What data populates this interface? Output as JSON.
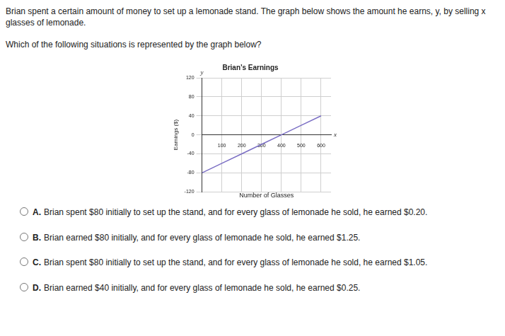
{
  "question": {
    "intro": "Brian spent a certain amount of money to set up a lemonade stand. The graph below shows the amount he earns, y, by selling x glasses of lemonade.",
    "prompt": "Which of the following situations is represented by the graph below?"
  },
  "chart_data": {
    "type": "line",
    "title": "Brian’s Earnings",
    "x_label": "Number of Glasses",
    "y_label": "Earnings ($)",
    "annotations": [
      {
        "text": "x",
        "axis": "x"
      },
      {
        "text": "y",
        "axis": "y"
      }
    ],
    "x": [
      0,
      100,
      200,
      300,
      400,
      500,
      600
    ],
    "series": [
      {
        "name": "Earnings",
        "color": "#7b6fc4",
        "values": [
          -80,
          -60,
          -40,
          -20,
          0,
          20,
          40
        ]
      }
    ],
    "xlim": [
      0,
      650
    ],
    "xticks": [
      100,
      200,
      300,
      400,
      500,
      600
    ],
    "ylim": [
      -120,
      120
    ],
    "yticks": [
      -120,
      -80,
      -40,
      0,
      40,
      80,
      120
    ],
    "grid": true
  },
  "choices": [
    {
      "letter": "A.",
      "text": "Brian spent $80 initially to set up the stand, and for every glass of lemonade he sold, he earned $0.20."
    },
    {
      "letter": "B.",
      "text": "Brian earned $80 initially, and for every glass of lemonade he sold, he earned $1.25."
    },
    {
      "letter": "C.",
      "text": "Brian spent $80 initially to set up the stand, and for every glass of lemonade he sold, he earned $1.05."
    },
    {
      "letter": "D.",
      "text": "Brian earned $40 initially, and for every glass of lemonade he sold, he earned $0.25."
    }
  ]
}
